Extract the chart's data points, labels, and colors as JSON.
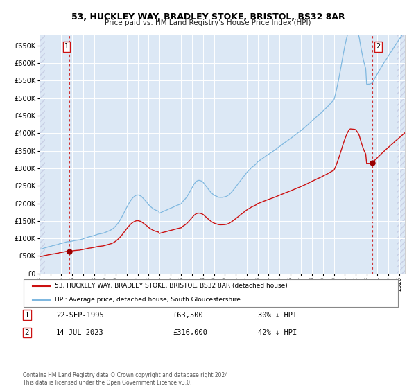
{
  "title": "53, HUCKLEY WAY, BRADLEY STOKE, BRISTOL, BS32 8AR",
  "subtitle": "Price paid vs. HM Land Registry's House Price Index (HPI)",
  "legend_line1": "53, HUCKLEY WAY, BRADLEY STOKE, BRISTOL, BS32 8AR (detached house)",
  "legend_line2": "HPI: Average price, detached house, South Gloucestershire",
  "table_row1_num": "1",
  "table_row1_date": "22-SEP-1995",
  "table_row1_price": "£63,500",
  "table_row1_hpi": "30% ↓ HPI",
  "table_row2_num": "2",
  "table_row2_date": "14-JUL-2023",
  "table_row2_price": "£316,000",
  "table_row2_hpi": "42% ↓ HPI",
  "footer": "Contains HM Land Registry data © Crown copyright and database right 2024.\nThis data is licensed under the Open Government Licence v3.0.",
  "hpi_color": "#7fb8e0",
  "price_color": "#cc1111",
  "grid_color": "#ffffff",
  "plot_bg": "#dce8f5",
  "marker_color": "#990000",
  "dashed_color": "#cc1111",
  "ylim": [
    0,
    680000
  ],
  "yticks": [
    0,
    50000,
    100000,
    150000,
    200000,
    250000,
    300000,
    350000,
    400000,
    450000,
    500000,
    550000,
    600000,
    650000
  ],
  "xlim_start": 1993.0,
  "xlim_end": 2026.5,
  "point1_x": 1995.73,
  "point1_y": 63500,
  "point2_x": 2023.54,
  "point2_y": 316000,
  "hpi_at_p1": 90714,
  "hpi_at_p2": 544828
}
